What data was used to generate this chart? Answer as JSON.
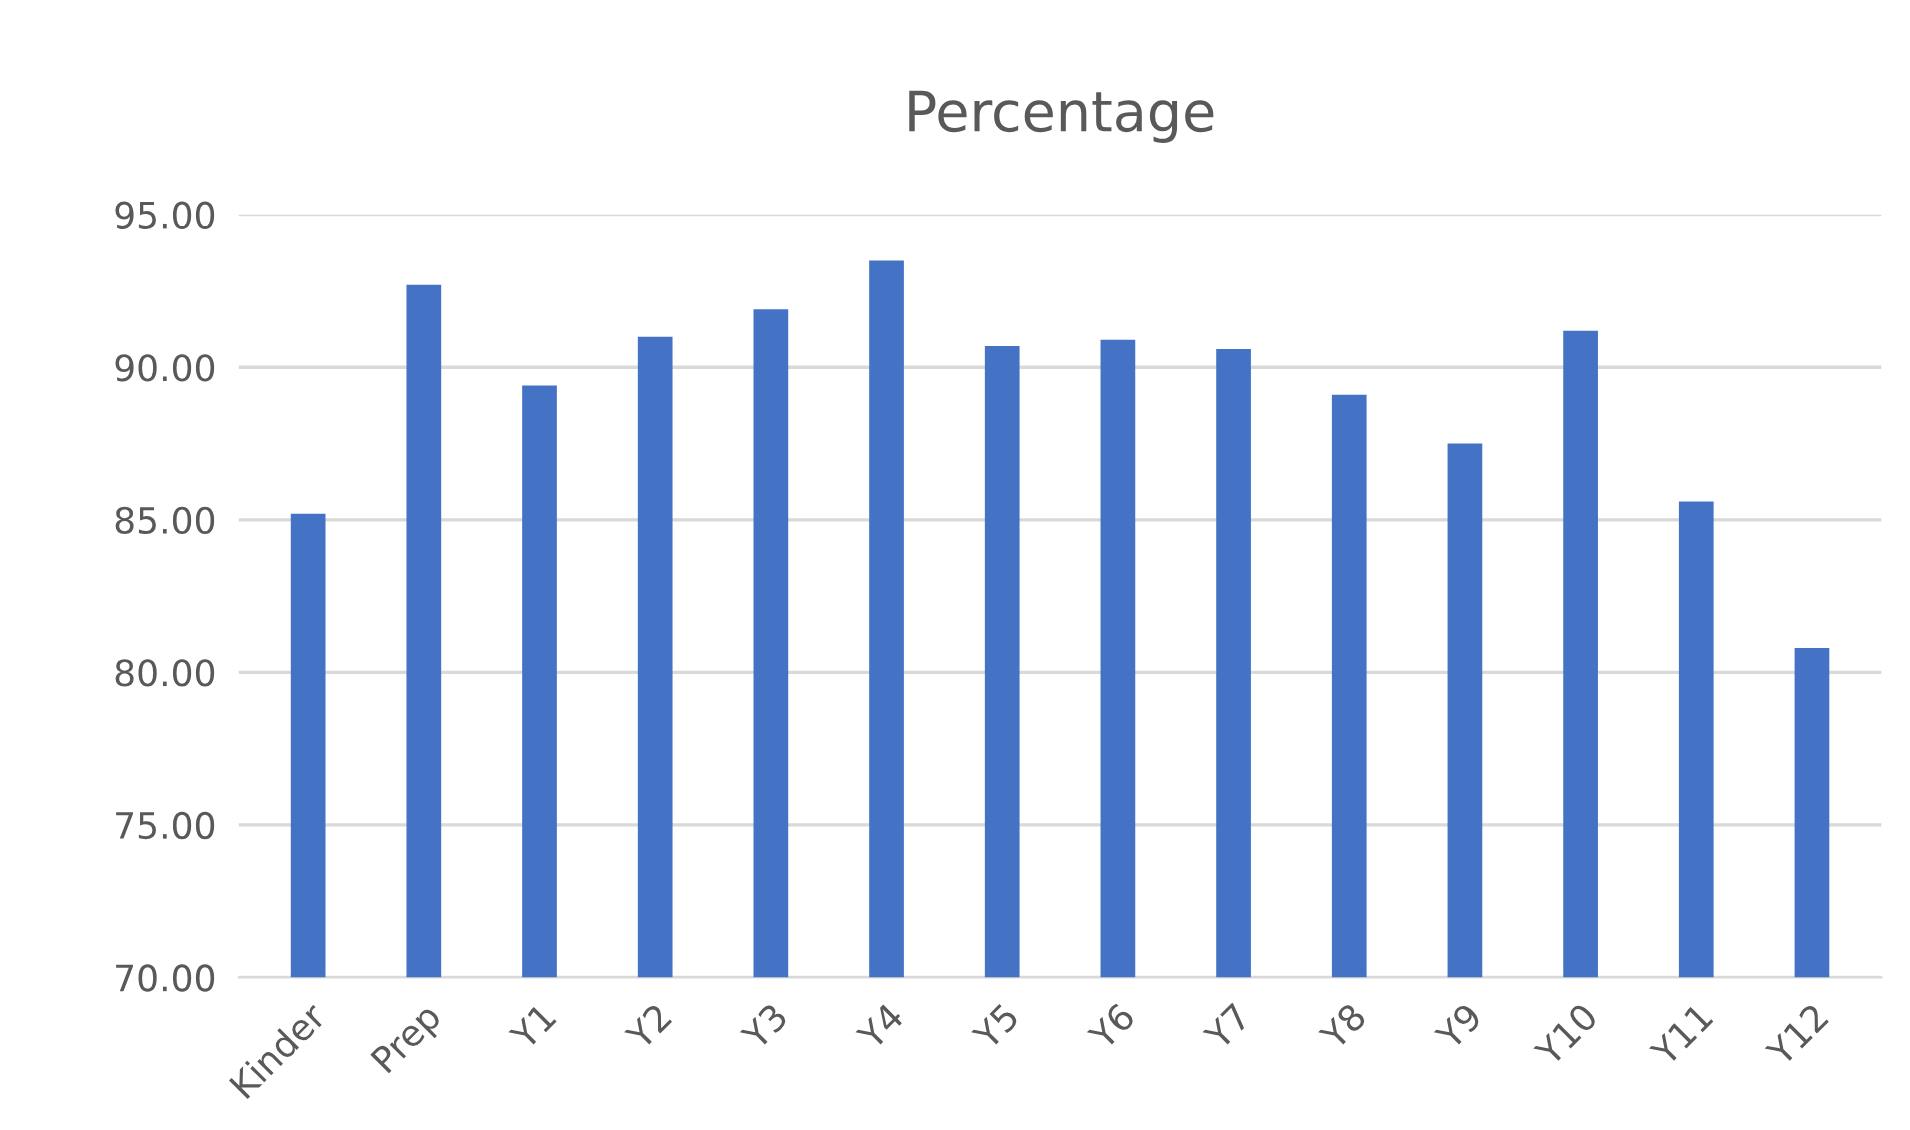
{
  "chart_data": {
    "type": "bar",
    "title": "Percentage",
    "categories": [
      "Kinder",
      "Prep",
      "Y1",
      "Y2",
      "Y3",
      "Y4",
      "Y5",
      "Y6",
      "Y7",
      "Y8",
      "Y9",
      "Y10",
      "Y11",
      "Y12"
    ],
    "values": [
      85.2,
      92.7,
      89.4,
      91.0,
      91.9,
      93.5,
      90.7,
      90.9,
      90.6,
      89.1,
      87.5,
      91.2,
      85.6,
      80.8
    ],
    "color": "#4472c4",
    "ylim": [
      70,
      95
    ],
    "yticks": [
      {
        "value": 70,
        "label": "70.00"
      },
      {
        "value": 75,
        "label": "75.00"
      },
      {
        "value": 80,
        "label": "80.00"
      },
      {
        "value": 85,
        "label": "85.00"
      },
      {
        "value": 90,
        "label": "90.00"
      },
      {
        "value": 95,
        "label": "95.00"
      }
    ],
    "grid": "y",
    "legend": false
  }
}
